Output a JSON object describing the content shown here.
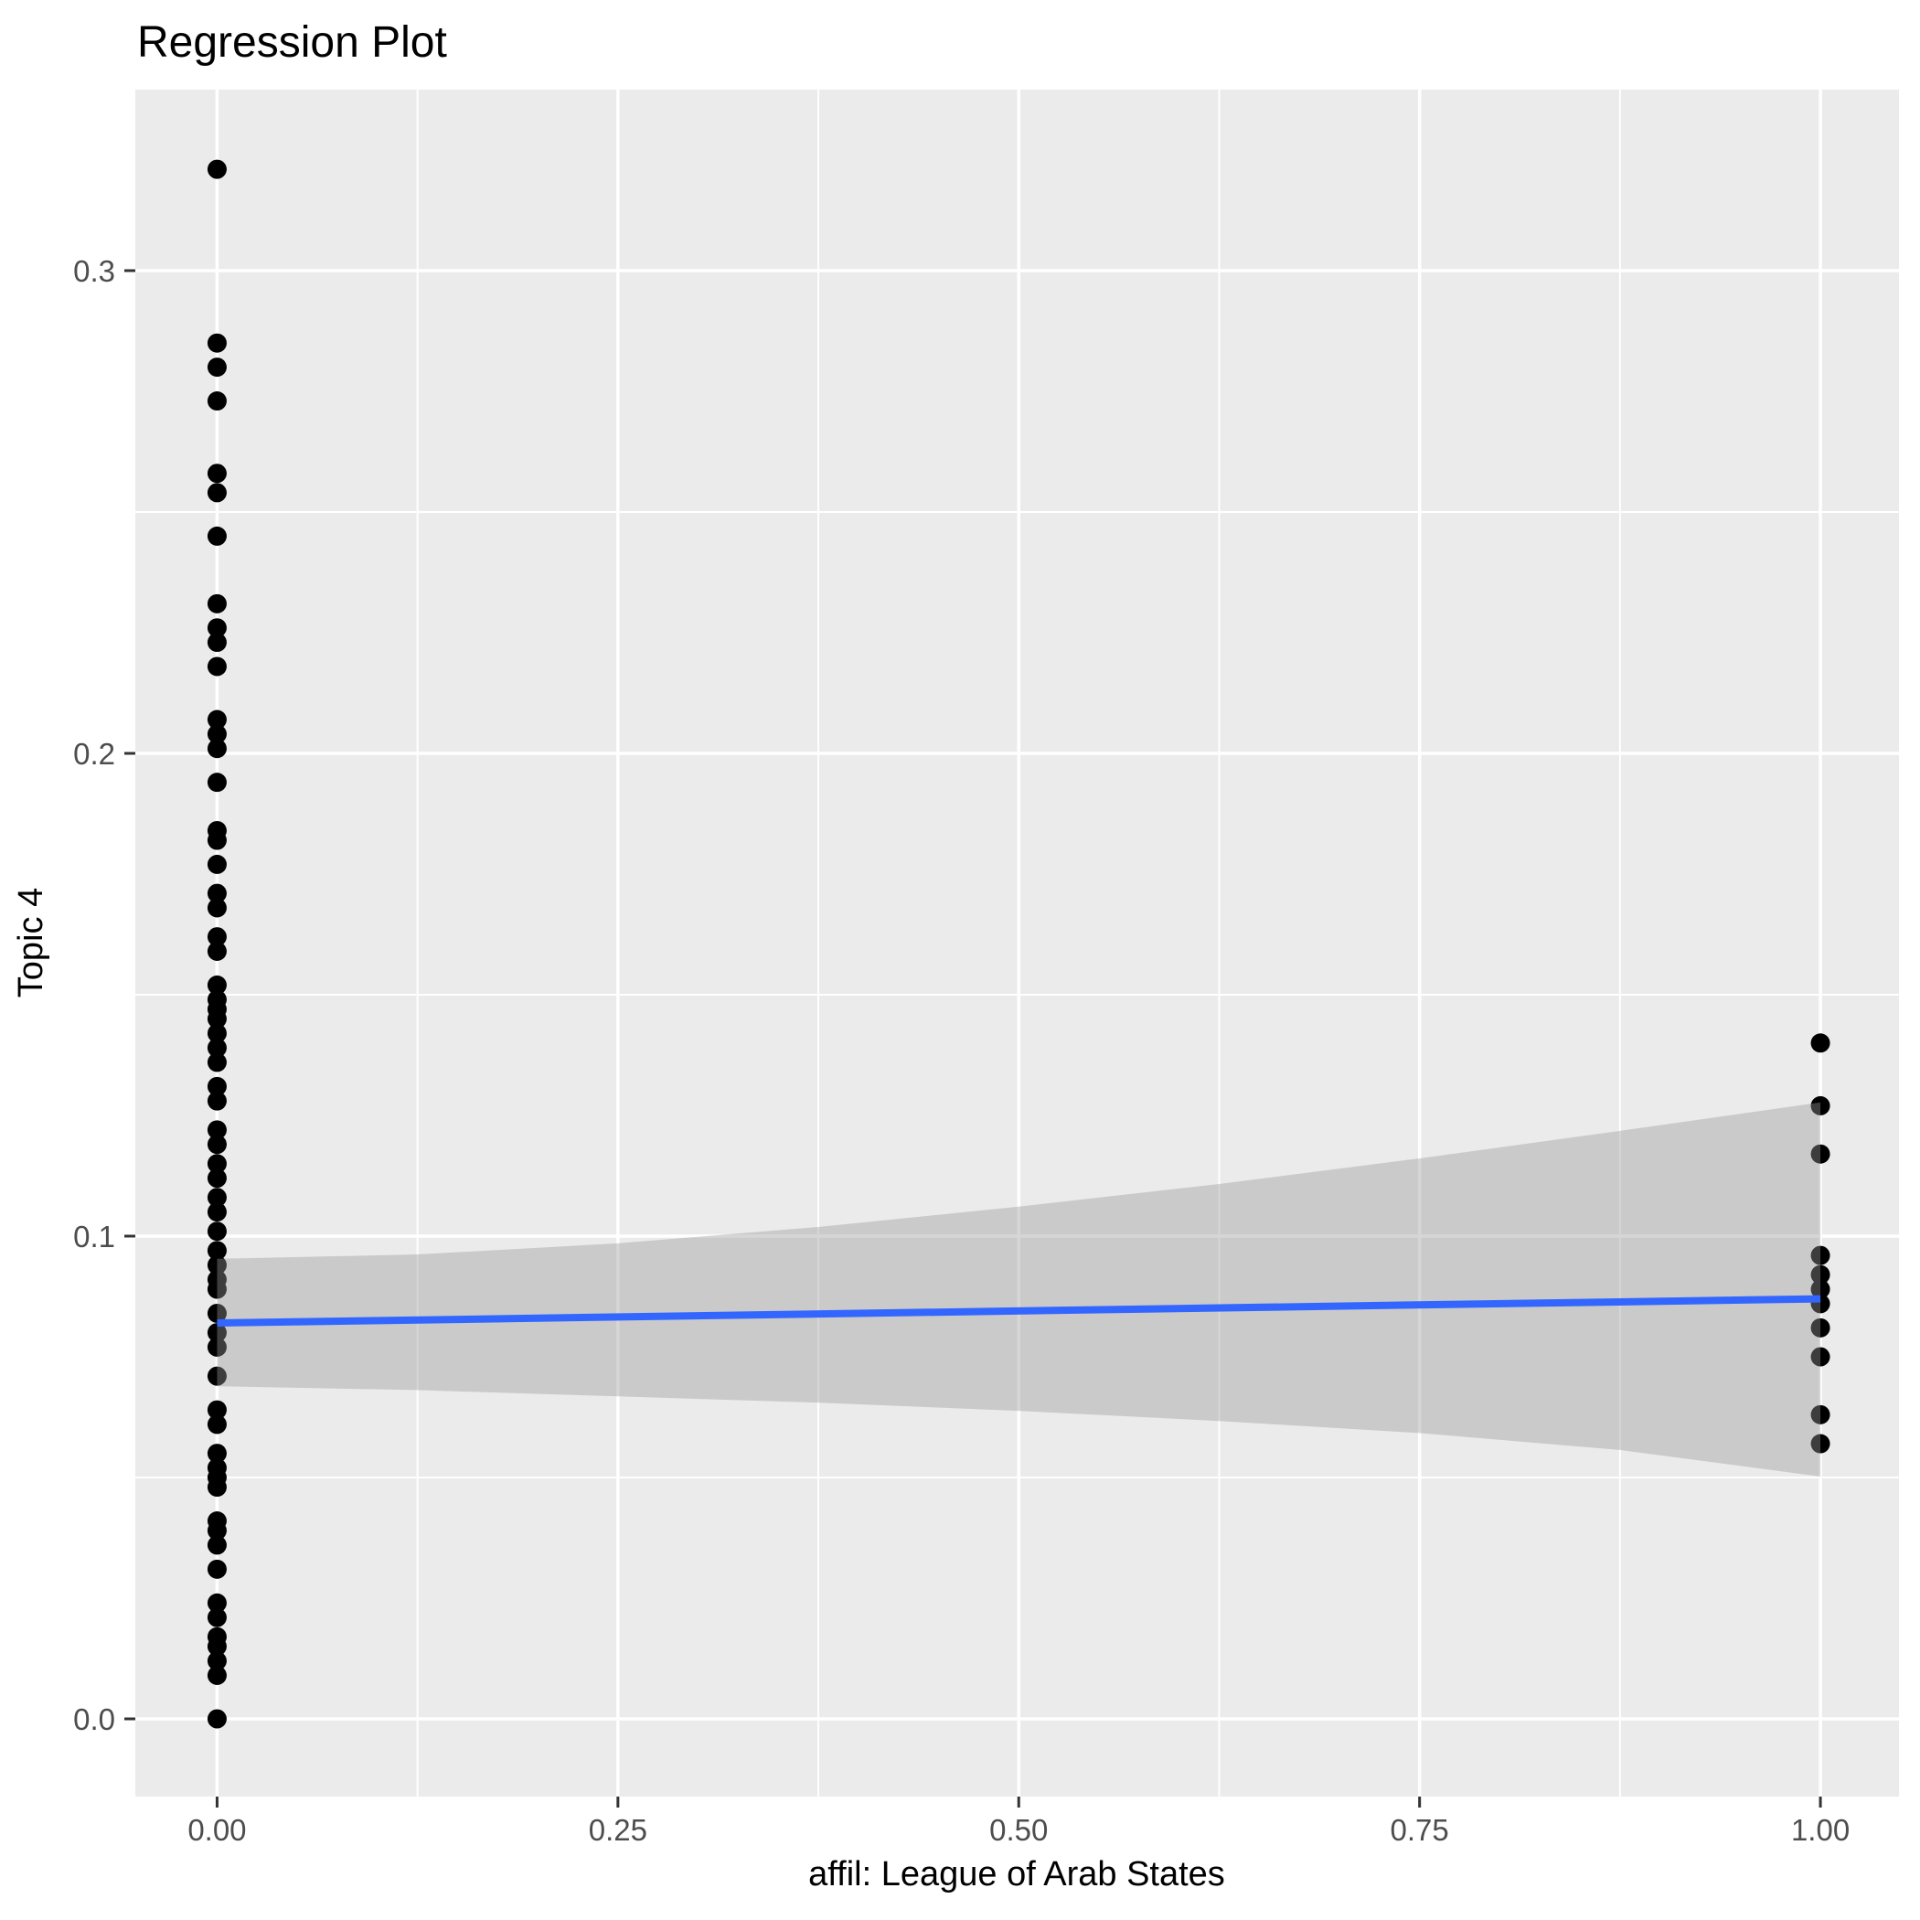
{
  "chart_data": {
    "type": "scatter",
    "title": "Regression Plot",
    "xlabel": "affil: League of Arab States",
    "ylabel": "Topic 4",
    "x_ticks": [
      0,
      0.25,
      0.5,
      0.75,
      1
    ],
    "x_tick_labels": [
      "0.00",
      "0.25",
      "0.50",
      "0.75",
      "1.00"
    ],
    "y_ticks": [
      0,
      0.1,
      0.2,
      0.3
    ],
    "y_tick_labels": [
      "0.0",
      "0.1",
      "0.2",
      "0.3"
    ],
    "x_minor_breaks": [
      0.125,
      0.375,
      0.625,
      0.875
    ],
    "y_minor_breaks": [
      0.05,
      0.15,
      0.25
    ],
    "xlim": [
      -0.051,
      1.049
    ],
    "ylim": [
      -0.0161,
      0.3375
    ],
    "grid": true,
    "legend_position": "none",
    "series": [
      {
        "x": 0,
        "values": [
          0.321,
          0.285,
          0.28,
          0.273,
          0.258,
          0.254,
          0.245,
          0.231,
          0.226,
          0.223,
          0.218,
          0.207,
          0.204,
          0.201,
          0.194,
          0.184,
          0.182,
          0.177,
          0.171,
          0.168,
          0.162,
          0.159,
          0.152,
          0.149,
          0.147,
          0.145,
          0.142,
          0.139,
          0.136,
          0.131,
          0.128,
          0.122,
          0.119,
          0.115,
          0.112,
          0.108,
          0.105,
          0.101,
          0.097,
          0.094,
          0.091,
          0.089,
          0.084,
          0.08,
          0.077,
          0.071,
          0.064,
          0.061,
          0.055,
          0.052,
          0.05,
          0.048,
          0.041,
          0.039,
          0.036,
          0.031,
          0.024,
          0.021,
          0.017,
          0.015,
          0.012,
          0.009,
          0.0
        ]
      },
      {
        "x": 1,
        "values": [
          0.14,
          0.127,
          0.117,
          0.096,
          0.092,
          0.089,
          0.086,
          0.081,
          0.075,
          0.063,
          0.057
        ]
      }
    ],
    "regression_line": {
      "x": [
        0,
        1
      ],
      "y": [
        0.082,
        0.087
      ]
    },
    "confidence_band": {
      "x": [
        0,
        0.125,
        0.25,
        0.375,
        0.5,
        0.625,
        0.75,
        0.875,
        1
      ],
      "upper": [
        0.0953,
        0.0962,
        0.0985,
        0.1019,
        0.1061,
        0.1108,
        0.1161,
        0.1218,
        0.1277
      ],
      "lower": [
        0.0689,
        0.0681,
        0.0668,
        0.0655,
        0.0638,
        0.0617,
        0.0592,
        0.0557,
        0.0502
      ]
    },
    "colors": {
      "point": "#000000",
      "line": "#3366FF",
      "band": "#999999",
      "band_opacity": 0.4,
      "panel": "#EBEBEB",
      "grid": "#FFFFFF",
      "tick_text": "#4D4D4D",
      "tick_mark": "#333333",
      "text": "#000000"
    }
  }
}
